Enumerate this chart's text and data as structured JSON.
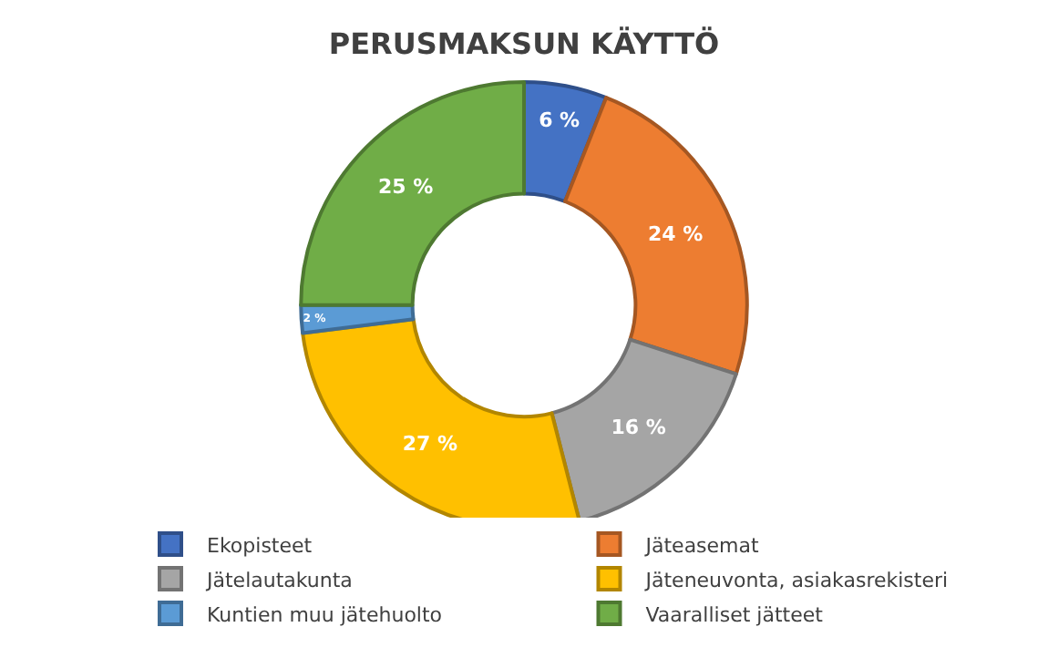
{
  "chart_data": {
    "type": "donut",
    "title": "PERUSMAKSUN KÄYTTÖ",
    "categories": [
      "Ekopisteet",
      "Jäteasemat",
      "Jätelautakunta",
      "Jäteneuvonta, asiakasrekisteri",
      "Kuntien muu jätehuolto",
      "Vaaralliset jätteet"
    ],
    "values": [
      6,
      24,
      16,
      27,
      2,
      25
    ],
    "value_labels": [
      "6 %",
      "24 %",
      "16 %",
      "27 %",
      "2 %",
      "25 %"
    ],
    "colors": [
      "#4472c4",
      "#ed7d31",
      "#a5a5a5",
      "#ffc000",
      "#5b9bd5",
      "#70ad47"
    ],
    "legend": "bottom"
  }
}
